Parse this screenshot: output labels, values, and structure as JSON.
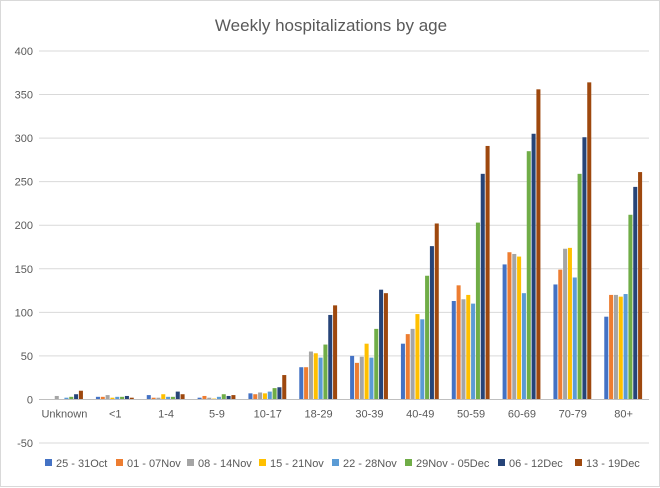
{
  "chart_data": {
    "type": "bar",
    "title": "Weekly hospitalizations by age",
    "xlabel": "",
    "ylabel": "",
    "ylim": [
      -50,
      400
    ],
    "yticks": [
      -50,
      0,
      50,
      100,
      150,
      200,
      250,
      300,
      350,
      400
    ],
    "grid": true,
    "legend_position": "bottom",
    "categories": [
      "Unknown",
      "<1",
      "1-4",
      "5-9",
      "10-17",
      "18-29",
      "30-39",
      "40-49",
      "50-59",
      "60-69",
      "70-79",
      "80+"
    ],
    "series": [
      {
        "name": "25 - 31Oct",
        "color": "#4472C4",
        "values": [
          0,
          3,
          5,
          2,
          7,
          37,
          50,
          64,
          113,
          155,
          132,
          95
        ]
      },
      {
        "name": "01 - 07Nov",
        "color": "#ED7D31",
        "values": [
          0,
          3,
          2,
          4,
          6,
          37,
          42,
          75,
          131,
          169,
          149,
          120
        ]
      },
      {
        "name": "08 - 14Nov",
        "color": "#A5A5A5",
        "values": [
          4,
          5,
          2,
          2,
          8,
          55,
          49,
          81,
          115,
          167,
          173,
          120
        ]
      },
      {
        "name": "15 - 21Nov",
        "color": "#FFC000",
        "values": [
          0,
          2,
          6,
          1,
          7,
          53,
          64,
          98,
          120,
          164,
          174,
          118
        ]
      },
      {
        "name": "22 - 28Nov",
        "color": "#5B9BD5",
        "values": [
          2,
          3,
          3,
          3,
          9,
          48,
          48,
          92,
          110,
          122,
          140,
          121
        ]
      },
      {
        "name": "29Nov - 05Dec",
        "color": "#70AD47",
        "values": [
          3,
          3,
          3,
          6,
          13,
          63,
          81,
          142,
          203,
          285,
          259,
          212
        ]
      },
      {
        "name": "06 - 12Dec",
        "color": "#264478",
        "values": [
          6,
          4,
          9,
          4,
          14,
          97,
          126,
          176,
          259,
          305,
          301,
          244
        ]
      },
      {
        "name": "13 - 19Dec",
        "color": "#9E480E",
        "values": [
          10,
          2,
          6,
          5,
          28,
          108,
          122,
          202,
          291,
          356,
          364,
          261
        ]
      }
    ]
  }
}
